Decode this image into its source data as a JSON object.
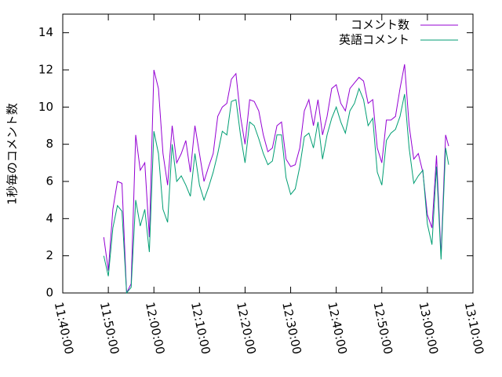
{
  "chart_data": {
    "type": "line",
    "y_label": "1秒毎のコメント数",
    "x": [
      "11:49:00",
      "11:50:00",
      "11:51:00",
      "11:52:00",
      "11:53:00",
      "11:54:00",
      "11:55:00",
      "11:56:00",
      "11:57:00",
      "11:58:00",
      "11:59:00",
      "12:00:00",
      "12:01:00",
      "12:02:00",
      "12:03:00",
      "12:04:00",
      "12:05:00",
      "12:06:00",
      "12:07:00",
      "12:08:00",
      "12:09:00",
      "12:10:00",
      "12:11:00",
      "12:12:00",
      "12:13:00",
      "12:14:00",
      "12:15:00",
      "12:16:00",
      "12:17:00",
      "12:18:00",
      "12:19:00",
      "12:20:00",
      "12:21:00",
      "12:22:00",
      "12:23:00",
      "12:24:00",
      "12:25:00",
      "12:26:00",
      "12:27:00",
      "12:28:00",
      "12:29:00",
      "12:30:00",
      "12:31:00",
      "12:32:00",
      "12:33:00",
      "12:34:00",
      "12:35:00",
      "12:36:00",
      "12:37:00",
      "12:38:00",
      "12:39:00",
      "12:40:00",
      "12:41:00",
      "12:42:00",
      "12:43:00",
      "12:44:00",
      "12:45:00",
      "12:46:00",
      "12:47:00",
      "12:48:00",
      "12:49:00",
      "12:50:00",
      "12:51:00",
      "12:52:00",
      "12:53:00",
      "12:54:00",
      "12:55:00",
      "12:56:00",
      "12:57:00",
      "12:58:00",
      "12:59:00",
      "13:00:00",
      "13:01:00",
      "13:02:00",
      "13:03:00",
      "13:04:00",
      "13:04:40"
    ],
    "series": [
      {
        "name": "コメント数",
        "color": "#9400d3",
        "values": [
          3.0,
          1.2,
          4.5,
          6.0,
          5.9,
          0,
          0.5,
          8.5,
          6.6,
          7.0,
          3.0,
          12.0,
          11.0,
          7.5,
          5.8,
          9.0,
          7.0,
          7.5,
          8.2,
          6.5,
          9.0,
          7.5,
          6.0,
          6.8,
          7.5,
          9.5,
          10.0,
          10.2,
          11.5,
          11.8,
          9.5,
          8.0,
          10.4,
          10.3,
          9.8,
          8.5,
          7.6,
          7.8,
          9.0,
          9.2,
          7.2,
          6.8,
          6.9,
          7.8,
          9.8,
          10.4,
          9.0,
          10.4,
          8.5,
          9.5,
          11.0,
          11.2,
          10.2,
          9.8,
          11.0,
          11.3,
          11.6,
          11.4,
          10.2,
          10.4,
          7.8,
          7.0,
          9.3,
          9.3,
          9.5,
          11.0,
          12.3,
          9.0,
          7.2,
          7.5,
          6.5,
          4.2,
          3.5,
          7.4,
          2.0,
          8.5,
          7.9
        ]
      },
      {
        "name": "英語コメント",
        "color": "#009e73",
        "values": [
          2.0,
          0.9,
          3.5,
          4.7,
          4.4,
          0,
          0.3,
          5.0,
          3.6,
          4.5,
          2.2,
          8.7,
          7.5,
          4.5,
          3.8,
          8.0,
          6.0,
          6.3,
          5.8,
          5.2,
          7.5,
          5.8,
          5.0,
          5.7,
          6.5,
          7.5,
          8.7,
          8.5,
          10.3,
          10.4,
          8.5,
          7.0,
          9.2,
          9.0,
          8.3,
          7.5,
          6.9,
          7.1,
          8.5,
          8.5,
          6.2,
          5.3,
          5.6,
          6.8,
          8.4,
          8.6,
          7.8,
          9.2,
          7.2,
          8.5,
          9.4,
          10.0,
          9.2,
          8.6,
          9.8,
          10.2,
          11.0,
          10.4,
          9.0,
          9.4,
          6.5,
          5.8,
          8.2,
          8.6,
          8.8,
          9.5,
          10.7,
          7.8,
          5.9,
          6.3,
          6.6,
          3.7,
          2.6,
          6.8,
          1.8,
          7.8,
          6.9
        ]
      }
    ],
    "xlim": [
      "11:40:00",
      "13:10:00"
    ],
    "xticks": [
      "11:40:00",
      "11:50:00",
      "12:00:00",
      "12:10:00",
      "12:20:00",
      "12:30:00",
      "12:40:00",
      "12:50:00",
      "13:00:00",
      "13:10:00"
    ],
    "ylim": [
      0,
      15
    ],
    "yticks": [
      0,
      2,
      4,
      6,
      8,
      10,
      12,
      14
    ],
    "legend": "top-right"
  }
}
